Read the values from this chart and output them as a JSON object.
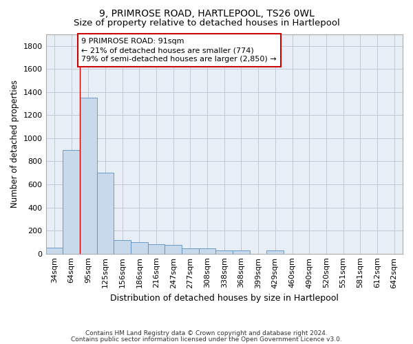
{
  "title1": "9, PRIMROSE ROAD, HARTLEPOOL, TS26 0WL",
  "title2": "Size of property relative to detached houses in Hartlepool",
  "xlabel": "Distribution of detached houses by size in Hartlepool",
  "ylabel": "Number of detached properties",
  "footnote1": "Contains HM Land Registry data © Crown copyright and database right 2024.",
  "footnote2": "Contains public sector information licensed under the Open Government Licence v3.0.",
  "categories": [
    "34sqm",
    "64sqm",
    "95sqm",
    "125sqm",
    "156sqm",
    "186sqm",
    "216sqm",
    "247sqm",
    "277sqm",
    "308sqm",
    "338sqm",
    "368sqm",
    "399sqm",
    "429sqm",
    "460sqm",
    "490sqm",
    "520sqm",
    "551sqm",
    "581sqm",
    "612sqm",
    "642sqm"
  ],
  "values": [
    50,
    900,
    1350,
    700,
    120,
    100,
    80,
    75,
    45,
    45,
    30,
    30,
    0,
    30,
    0,
    0,
    0,
    0,
    0,
    0,
    0
  ],
  "bar_color": "#c9d9ec",
  "bar_edge_color": "#5a8fc2",
  "property_line_color": "#cc0000",
  "annotation_line1": "9 PRIMROSE ROAD: 91sqm",
  "annotation_line2": "← 21% of detached houses are smaller (774)",
  "annotation_line3": "79% of semi-detached houses are larger (2,850) →",
  "annotation_box_color": "#ffffff",
  "annotation_edge_color": "#cc0000",
  "ylim": [
    0,
    1900
  ],
  "yticks": [
    0,
    200,
    400,
    600,
    800,
    1000,
    1200,
    1400,
    1600,
    1800
  ],
  "bg_color": "#ffffff",
  "plot_bg_color": "#e8eef5",
  "grid_color": "#c0c8d8",
  "title1_fontsize": 10,
  "title2_fontsize": 9.5,
  "xlabel_fontsize": 9,
  "ylabel_fontsize": 8.5,
  "tick_fontsize": 8,
  "annotation_fontsize": 8,
  "footnote_fontsize": 6.5
}
